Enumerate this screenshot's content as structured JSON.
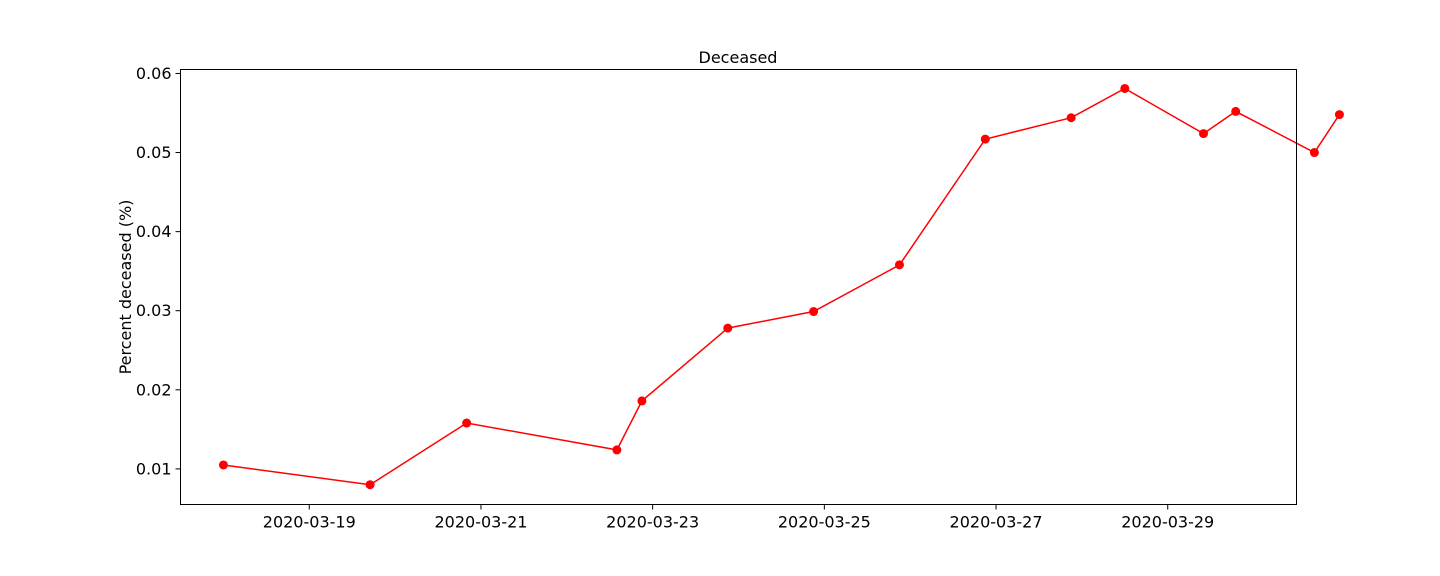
{
  "chart_data": {
    "type": "line",
    "title": "Deceased",
    "xlabel": "",
    "ylabel": "Percent deceased (%)",
    "x_tick_labels": [
      "2020-03-19",
      "2020-03-21",
      "2020-03-23",
      "2020-03-25",
      "2020-03-27",
      "2020-03-29"
    ],
    "y_tick_labels": [
      "0.01",
      "0.02",
      "0.03",
      "0.04",
      "0.05",
      "0.06"
    ],
    "y_ticks": [
      0.01,
      0.02,
      0.03,
      0.04,
      0.05,
      0.06
    ],
    "xlim": [
      "2020-03-17 12:00",
      "2020-03-30 12:00"
    ],
    "ylim": [
      0.0055,
      0.0605
    ],
    "grid": false,
    "color": "#ff0000",
    "series": [
      {
        "x": [
          "2020-03-18 00:00",
          "2020-03-19 17:00",
          "2020-03-20 20:00",
          "2020-03-22 14:00",
          "2020-03-22 21:00",
          "2020-03-23 21:00",
          "2020-03-24 21:00",
          "2020-03-25 21:00",
          "2020-03-26 21:00",
          "2020-03-27 21:00",
          "2020-03-28 12:00",
          "2020-03-29 10:00",
          "2020-03-29 19:00",
          "2020-03-30 17:00",
          "2020-03-31 00:00"
        ],
        "values": [
          0.0105,
          0.008,
          0.0158,
          0.0124,
          0.0186,
          0.0278,
          0.0299,
          0.0358,
          0.0517,
          0.0544,
          0.0581,
          0.0524,
          0.0552,
          0.05,
          0.0548
        ]
      }
    ]
  }
}
